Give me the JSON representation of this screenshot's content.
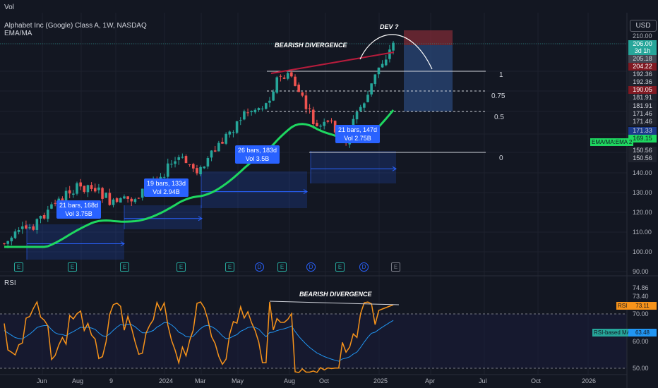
{
  "top_label": "Vol",
  "symbol_line": "Alphabet Inc (Google) Class A, 1W, NASDAQ",
  "indicator_line": "EMA/MA",
  "currency": "USD",
  "rsi_title": "RSI",
  "annotations": {
    "bearish_top": "BEARISH DIVERGENCE",
    "bearish_rsi": "BEARISH DIVERGENCE",
    "dev": "DEV ?"
  },
  "fib_levels": [
    {
      "label": "1",
      "price": 192.36
    },
    {
      "label": "0.75",
      "price": 181.91
    },
    {
      "label": "0.5",
      "price": 171.46
    },
    {
      "label": "0",
      "price": 150.56
    }
  ],
  "range_boxes": [
    {
      "line1": "21 bars, 168d",
      "line2": "Vol 3.75B"
    },
    {
      "line1": "19 bars, 133d",
      "line2": "Vol 2.94B"
    },
    {
      "line1": "26 bars, 183d",
      "line2": "Vol 3.5B"
    },
    {
      "line1": "21 bars, 147d",
      "line2": "Vol 2.75B"
    }
  ],
  "price_axis_ticks": [
    "210.00",
    "140.00",
    "130.00",
    "120.00",
    "110.00",
    "100.00",
    "90.00"
  ],
  "price_tags": [
    {
      "text": "206.00",
      "bg": "#26a69a",
      "fg": "#ffffff"
    },
    {
      "text": "3d 1h",
      "bg": "#26a69a",
      "fg": "#ffffff"
    },
    {
      "text": "205.18",
      "bg": "#434651",
      "fg": "#d1d4dc"
    },
    {
      "text": "204.22",
      "bg": "#801922",
      "fg": "#ffffff"
    },
    {
      "text": "192.36",
      "bg": "#1e222d",
      "fg": "#d1d4dc"
    },
    {
      "text": "192.36",
      "bg": "#1e222d",
      "fg": "#d1d4dc"
    },
    {
      "text": "190.05",
      "bg": "#801922",
      "fg": "#ffffff"
    },
    {
      "text": "181.91",
      "bg": "#1e222d",
      "fg": "#d1d4dc"
    },
    {
      "text": "181.91",
      "bg": "#1e222d",
      "fg": "#d1d4dc"
    },
    {
      "text": "171.46",
      "bg": "#1e222d",
      "fg": "#d1d4dc"
    },
    {
      "text": "171.46",
      "bg": "#1e222d",
      "fg": "#d1d4dc"
    },
    {
      "text": "171.33",
      "bg": "#1a3a8c",
      "fg": "#d1d4dc"
    },
    {
      "text": "169.15",
      "bg": "#1ed760",
      "fg": "#131722"
    },
    {
      "text": "150.56",
      "bg": "#1e222d",
      "fg": "#d1d4dc"
    },
    {
      "text": "150.56",
      "bg": "#1e222d",
      "fg": "#d1d4dc"
    }
  ],
  "ema_tag": "EMA/MA:EMA 2",
  "rsi_axis_ticks": [
    "74.86",
    "73.40",
    "70.00",
    "60.00",
    "50.00"
  ],
  "rsi_tag": {
    "label": "RSI",
    "value": "73.11"
  },
  "rsi_ma_tag": {
    "label": "RSI-based MA",
    "value": "63.48"
  },
  "x_axis_labels": [
    "Jun",
    "Aug",
    "9",
    "2024",
    "Mar",
    "May",
    "Aug",
    "Oct",
    "2025",
    "Apr",
    "Jul",
    "Oct",
    "2026"
  ],
  "earnings_markers": [
    "E",
    "E",
    "E",
    "E",
    "E",
    "D",
    "E",
    "D",
    "E",
    "D",
    "E"
  ],
  "colors": {
    "background": "#131722",
    "up": "#26a69a",
    "down": "#ef5350",
    "ema": "#1ed760",
    "rsi": "#f7931a",
    "rsi_ma": "#2196f3"
  }
}
